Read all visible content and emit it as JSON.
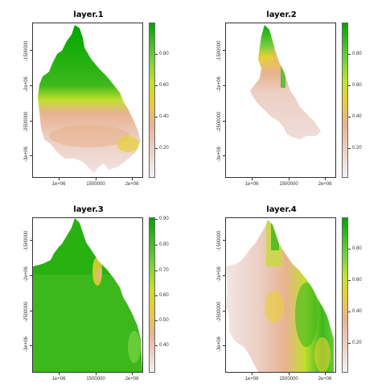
{
  "colors": {
    "ramp": [
      "#f2f2f2",
      "#eccfc4",
      "#e8b28e",
      "#e6d035",
      "#c2e02e",
      "#6fcd3c",
      "#00a600"
    ]
  },
  "x_tick_labels": [
    "1e+06",
    "1500000",
    "2e+06"
  ],
  "y_tick_labels": [
    "-1500000",
    "-2e+06",
    "-2500000",
    "-3e+06"
  ],
  "panels": [
    {
      "title": "layer.1",
      "colorbar": {
        "ticks": [
          "0.20",
          "0.40",
          "0.60",
          "0.80"
        ],
        "min": 0.0,
        "max": 1.0
      }
    },
    {
      "title": "layer.2",
      "colorbar": {
        "ticks": [
          "0.20",
          "0.40",
          "0.60",
          "0.80"
        ],
        "min": 0.0,
        "max": 1.0
      }
    },
    {
      "title": "layer.3",
      "colorbar": {
        "ticks": [
          "0.40",
          "0.50",
          "0.60",
          "0.70",
          "0.80",
          "0.90"
        ],
        "min": 0.38,
        "max": 1.0
      }
    },
    {
      "title": "layer.4",
      "colorbar": {
        "ticks": [
          "0.20",
          "0.40",
          "0.60",
          "0.80"
        ],
        "min": 0.0,
        "max": 1.0
      }
    }
  ]
}
